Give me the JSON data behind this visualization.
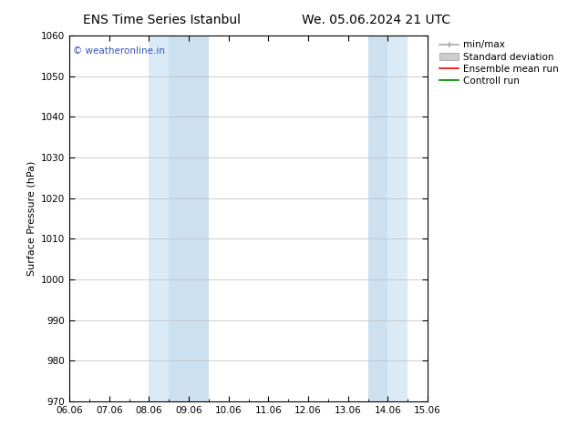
{
  "title_left": "ENS Time Series Istanbul",
  "title_right": "We. 05.06.2024 21 UTC",
  "ylabel": "Surface Pressure (hPa)",
  "ylim": [
    970,
    1060
  ],
  "yticks": [
    970,
    980,
    990,
    1000,
    1010,
    1020,
    1030,
    1040,
    1050,
    1060
  ],
  "xlim": [
    0,
    9
  ],
  "xtick_labels": [
    "06.06",
    "07.06",
    "08.06",
    "09.06",
    "10.06",
    "11.06",
    "12.06",
    "13.06",
    "14.06",
    "15.06"
  ],
  "shaded_bands": [
    {
      "xstart": 2.0,
      "xend": 2.5,
      "color": "#daeaf7"
    },
    {
      "xstart": 2.5,
      "xend": 3.5,
      "color": "#cce0f0"
    },
    {
      "xstart": 7.5,
      "xend": 8.0,
      "color": "#cce0f0"
    },
    {
      "xstart": 8.0,
      "xend": 8.5,
      "color": "#daeaf7"
    }
  ],
  "watermark": "© weatheronline.in",
  "watermark_color": "#3355bb",
  "legend_entries": [
    {
      "label": "min/max",
      "color": "#aaaaaa",
      "type": "line_with_cap"
    },
    {
      "label": "Standard deviation",
      "color": "#cccccc",
      "type": "band"
    },
    {
      "label": "Ensemble mean run",
      "color": "#ff0000",
      "type": "line"
    },
    {
      "label": "Controll run",
      "color": "#008000",
      "type": "line"
    }
  ],
  "background_color": "#ffffff",
  "plot_bg_color": "#ffffff",
  "grid_color": "#bbbbbb",
  "title_fontsize": 10,
  "axis_label_fontsize": 8,
  "tick_fontsize": 7.5,
  "legend_fontsize": 7.5
}
